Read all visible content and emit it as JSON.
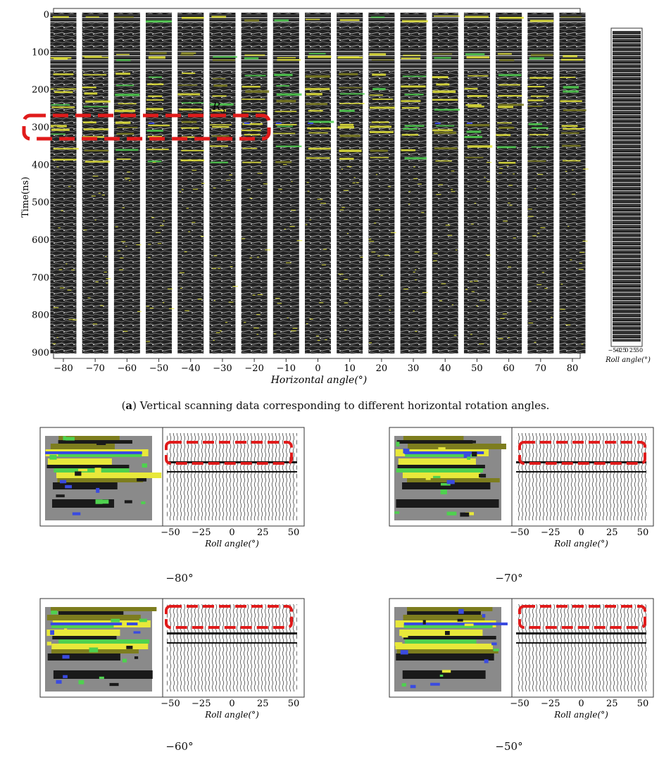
{
  "figure_a": {
    "y_label": "Time(ns)",
    "y_ticks": [
      "0",
      "100",
      "200",
      "300",
      "400",
      "500",
      "600",
      "700",
      "800",
      "900"
    ],
    "x_label": "Horizontal angle(°)",
    "x_ticks": [
      "−80",
      "−70",
      "−60",
      "−50",
      "−40",
      "−30",
      "−20",
      "−10",
      "0",
      "10",
      "20",
      "30",
      "40",
      "50",
      "60",
      "70",
      "80"
    ],
    "region_label": "R",
    "region_sub": "3",
    "side_ticks": [
      "−50",
      "−25",
      "0",
      "25",
      "50"
    ],
    "side_label": "Roll angle(°)",
    "caption_prefix": "(",
    "caption_letter": "a",
    "caption_text": ") Vertical scanning data corresponding to different horizontal rotation angles."
  },
  "subfigures": [
    {
      "angle_label": "−80°",
      "x_label": "Roll angle(°)",
      "ticks": [
        "−50",
        "−25",
        "0",
        "25",
        "50"
      ]
    },
    {
      "angle_label": "−70°",
      "x_label": "Roll angle(°)",
      "ticks": [
        "−50",
        "−25",
        "0",
        "25",
        "50"
      ]
    },
    {
      "angle_label": "−60°",
      "x_label": "Roll angle(°)",
      "ticks": [
        "−50",
        "−25",
        "0",
        "25",
        "50"
      ]
    },
    {
      "angle_label": "−50°",
      "x_label": "Roll angle(°)",
      "ticks": [
        "−50",
        "−25",
        "0",
        "25",
        "50"
      ]
    }
  ],
  "colors": {
    "dash": "#e01b1b",
    "radar_bg": "#1a1a1a",
    "yellow": "#e8e83a",
    "green": "#4fd14f",
    "blue": "#3a4be0",
    "gray": "#8a8a8a",
    "olive": "#7d7d1e"
  }
}
